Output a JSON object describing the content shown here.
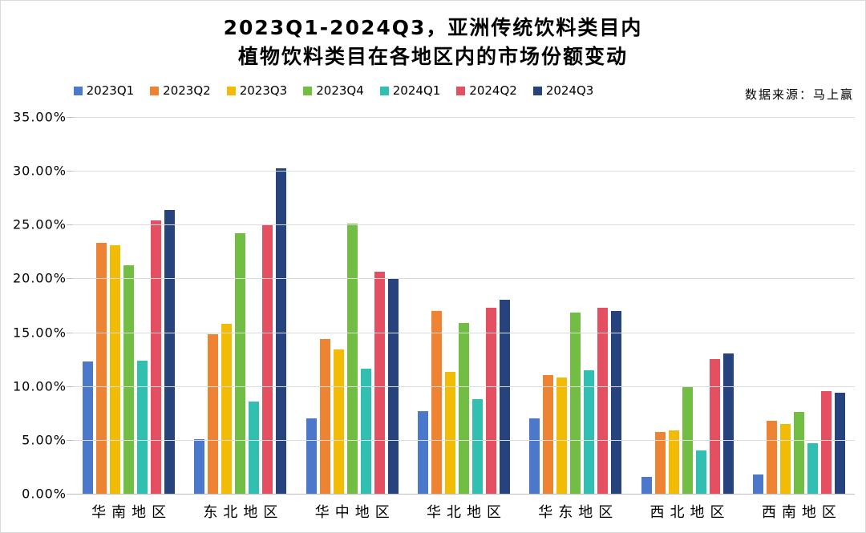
{
  "chart_data": {
    "type": "bar",
    "title_line1": "2023Q1-2024Q3，亚洲传统饮料类目内",
    "title_line2": "植物饮料类目在各地区内的市场份额变动",
    "source": "数据来源：马上赢",
    "categories": [
      "华南地区",
      "东北地区",
      "华中地区",
      "华北地区",
      "华东地区",
      "西北地区",
      "西南地区"
    ],
    "series": [
      {
        "name": "2023Q1",
        "color": "#4C78CC",
        "values": [
          12.3,
          5.1,
          7.0,
          7.7,
          7.0,
          1.6,
          1.8
        ]
      },
      {
        "name": "2023Q2",
        "color": "#EE8333",
        "values": [
          23.3,
          14.8,
          14.4,
          17.0,
          11.0,
          5.7,
          6.8
        ]
      },
      {
        "name": "2023Q3",
        "color": "#F2BB05",
        "values": [
          23.1,
          15.8,
          13.4,
          11.3,
          10.8,
          5.9,
          6.5
        ]
      },
      {
        "name": "2023Q4",
        "color": "#72BD44",
        "values": [
          21.2,
          24.2,
          25.1,
          15.9,
          16.8,
          10.0,
          7.6
        ]
      },
      {
        "name": "2024Q1",
        "color": "#31BFB2",
        "values": [
          12.4,
          8.6,
          11.6,
          8.8,
          11.5,
          4.0,
          4.7
        ]
      },
      {
        "name": "2024Q2",
        "color": "#E45062",
        "values": [
          25.4,
          25.0,
          20.6,
          17.3,
          17.3,
          12.5,
          9.5
        ]
      },
      {
        "name": "2024Q3",
        "color": "#27437E",
        "values": [
          26.4,
          30.2,
          20.0,
          18.0,
          17.0,
          13.0,
          9.4
        ]
      }
    ],
    "ylim": [
      0,
      35
    ],
    "ytick_step": 5,
    "ytick_labels": [
      "0.00%",
      "5.00%",
      "10.00%",
      "15.00%",
      "20.00%",
      "25.00%",
      "30.00%",
      "35.00%"
    ],
    "xlabel": "",
    "ylabel": "",
    "grid": true,
    "legend_position": "top"
  },
  "colors": {
    "gridline": "#DCDCDC",
    "axis_line": "#BFBFBF",
    "text": "#000000",
    "background": "#FFFFFF",
    "border": "#D9D9D9"
  }
}
